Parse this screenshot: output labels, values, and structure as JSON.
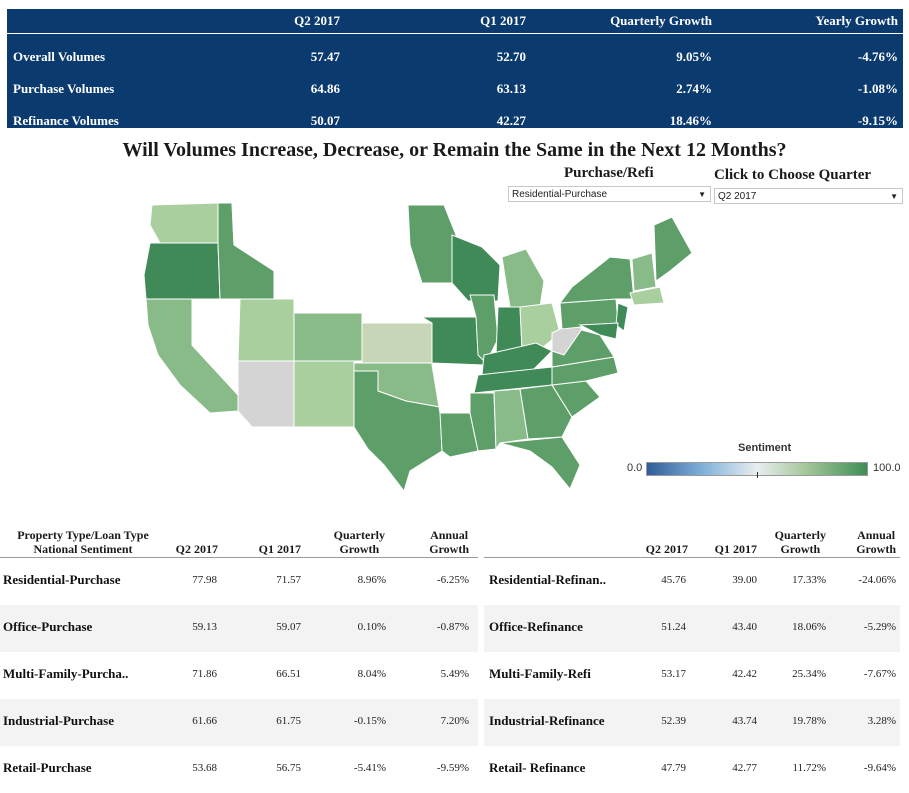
{
  "summary": {
    "headers": [
      "Q2 2017",
      "Q1 2017",
      "Quarterly Growth",
      "Yearly Growth"
    ],
    "rows": [
      {
        "label": "Overall Volumes",
        "q2": "57.47",
        "q1": "52.70",
        "qg": "9.05%",
        "yg": "-4.76%"
      },
      {
        "label": "Purchase Volumes",
        "q2": "64.86",
        "q1": "63.13",
        "qg": "2.74%",
        "yg": "-1.08%"
      },
      {
        "label": "Refinance Volumes",
        "q2": "50.07",
        "q1": "42.27",
        "qg": "18.46%",
        "yg": "-9.15%"
      }
    ]
  },
  "map": {
    "title": "Will Volumes Increase, Decrease, or Remain the Same in the Next 12 Months?",
    "legend_title": "Sentiment",
    "legend_min": "0.0",
    "legend_max": "100.0",
    "colors": {
      "dark": "#3f8a57",
      "mid": "#5e9f69",
      "light": "#88bb88",
      "pale": "#a9cf9f",
      "grey": "#d4d4d4",
      "white": "#ffffff",
      "beige": "#c6d6b6"
    }
  },
  "filters": {
    "purchase_refi_label": "Purchase/Refi",
    "purchase_refi_value": "Residential-Purchase",
    "quarter_label": "Click to Choose Quarter",
    "quarter_value": "Q2 2017"
  },
  "left_table": {
    "h_type_1": "Property Type/Loan Type",
    "h_type_2": "National Sentiment",
    "h_q2": "Q2 2017",
    "h_q1": "Q1 2017",
    "h_qg_1": "Quarterly",
    "h_qg_2": "Growth",
    "h_ag_1": "Annual",
    "h_ag_2": "Growth",
    "rows": [
      {
        "name": "Residential-Purchase",
        "q2": "77.98",
        "q1": "71.57",
        "qg": "8.96%",
        "ag": "-6.25%"
      },
      {
        "name": "Office-Purchase",
        "q2": "59.13",
        "q1": "59.07",
        "qg": "0.10%",
        "ag": "-0.87%"
      },
      {
        "name": "Multi-Family-Purcha..",
        "q2": "71.86",
        "q1": "66.51",
        "qg": "8.04%",
        "ag": "5.49%"
      },
      {
        "name": "Industrial-Purchase",
        "q2": "61.66",
        "q1": "61.75",
        "qg": "-0.15%",
        "ag": "7.20%"
      },
      {
        "name": "Retail-Purchase",
        "q2": "53.68",
        "q1": "56.75",
        "qg": "-5.41%",
        "ag": "-9.59%"
      }
    ]
  },
  "right_table": {
    "h_q2": "Q2 2017",
    "h_q1": "Q1 2017",
    "h_qg_1": "Quarterly",
    "h_qg_2": "Growth",
    "h_ag_1": "Annual",
    "h_ag_2": "Growth",
    "rows": [
      {
        "name": "Residential-Refinan..",
        "q2": "45.76",
        "q1": "39.00",
        "qg": "17.33%",
        "ag": "-24.06%"
      },
      {
        "name": "Office-Refinance",
        "q2": "51.24",
        "q1": "43.40",
        "qg": "18.06%",
        "ag": "-5.29%"
      },
      {
        "name": "Multi-Family-Refi",
        "q2": "53.17",
        "q1": "42.42",
        "qg": "25.34%",
        "ag": "-7.67%"
      },
      {
        "name": "Industrial-Refinance",
        "q2": "52.39",
        "q1": "43.74",
        "qg": "19.78%",
        "ag": "3.28%"
      },
      {
        "name": "Retail- Refinance",
        "q2": "47.79",
        "q1": "42.77",
        "qg": "11.72%",
        "ag": "-9.64%"
      }
    ]
  }
}
